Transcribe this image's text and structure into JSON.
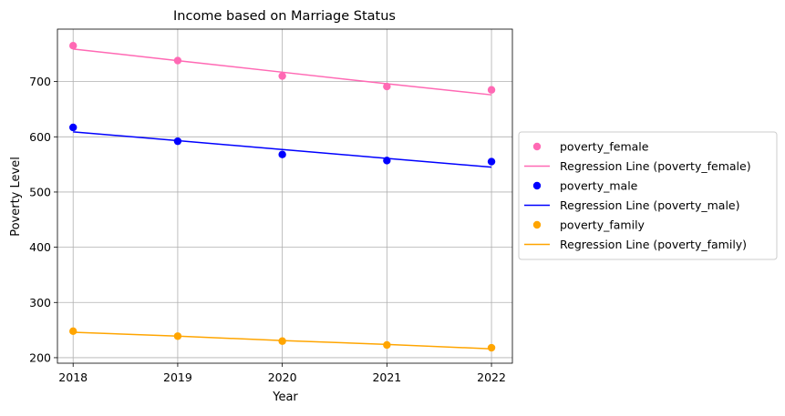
{
  "chart_data": {
    "type": "scatter",
    "title": "Income based on Marriage Status",
    "xlabel": "Year",
    "ylabel": "Poverty Level",
    "x": [
      2018,
      2019,
      2020,
      2021,
      2022
    ],
    "xlim": [
      2017.85,
      2022.2
    ],
    "ylim": [
      190,
      795
    ],
    "yticks": [
      200,
      300,
      400,
      500,
      600,
      700
    ],
    "grid": true,
    "legend_position": "center-right-outside",
    "series": [
      {
        "name": "poverty_female",
        "color": "#ff69b4",
        "values": [
          765,
          738,
          710,
          691,
          685
        ],
        "regression_name": "Regression Line (poverty_female)",
        "regression": [
          759,
          738,
          717,
          696,
          676
        ]
      },
      {
        "name": "poverty_male",
        "color": "#0000ff",
        "values": [
          617,
          592,
          568,
          557,
          555
        ],
        "regression_name": "Regression Line (poverty_male)",
        "regression": [
          609,
          593,
          577,
          561,
          545
        ]
      },
      {
        "name": "poverty_family",
        "color": "#ffa500",
        "values": [
          248,
          239,
          230,
          223,
          218
        ],
        "regression_name": "Regression Line (poverty_family)",
        "regression": [
          246,
          239,
          231,
          224,
          216
        ]
      }
    ]
  }
}
